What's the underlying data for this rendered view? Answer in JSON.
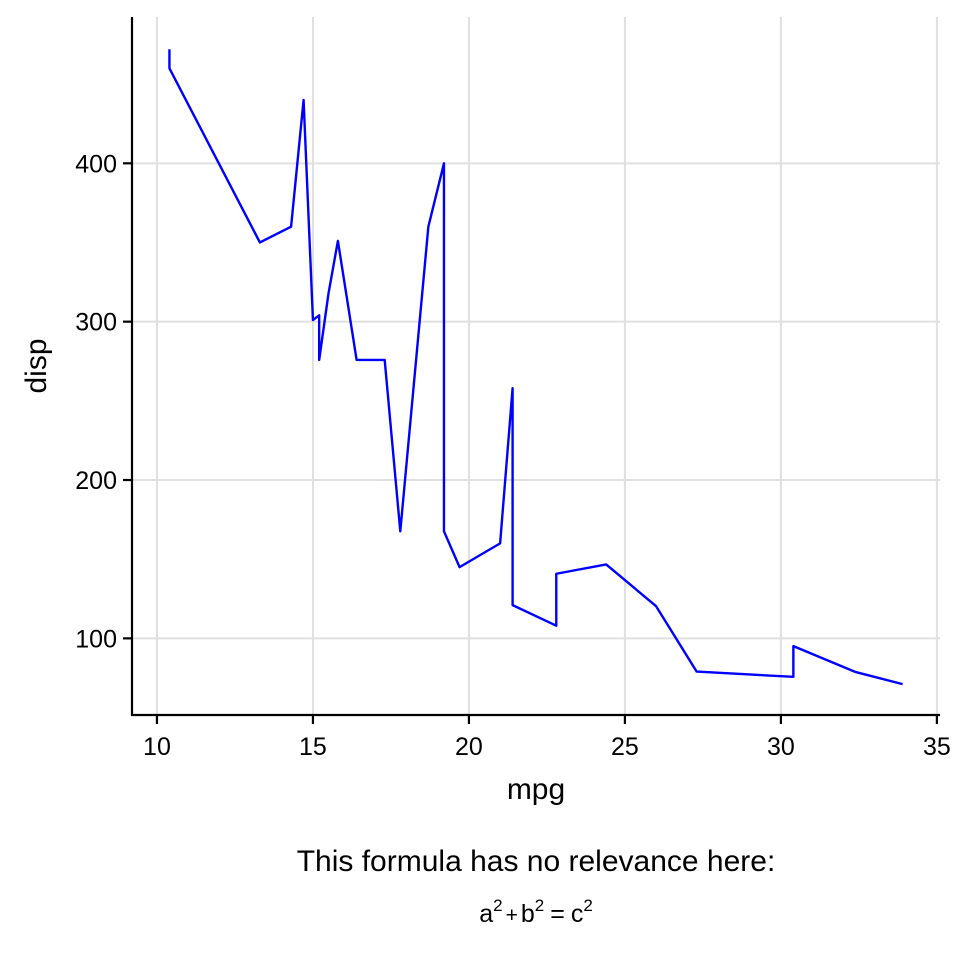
{
  "chart_data": {
    "type": "line",
    "xlabel": "mpg",
    "ylabel": "disp",
    "xlim": [
      9.2,
      35.1
    ],
    "ylim": [
      51.6,
      492.4
    ],
    "x_ticks": [
      10,
      15,
      20,
      25,
      30,
      35
    ],
    "y_ticks": [
      100,
      200,
      300,
      400
    ],
    "grid": true,
    "legend": "none",
    "line_color": "#0000FF",
    "caption": {
      "line1": "This formula has no relevance here:",
      "formula": {
        "a": "a",
        "a_exp": "2",
        "plus": "+",
        "b": "b",
        "b_exp": "2",
        "equals": "=",
        "c": "c",
        "c_exp": "2"
      }
    },
    "series": [
      {
        "x": [
          10.4,
          10.4,
          13.3,
          14.3,
          14.7,
          15.0,
          15.2,
          15.2,
          15.5,
          15.8,
          16.4,
          17.3,
          17.8,
          18.7,
          19.2,
          19.2,
          19.7,
          21.0,
          21.4,
          21.4,
          22.8,
          22.8,
          24.4,
          26.0,
          27.3,
          30.4,
          30.4,
          32.4,
          33.9
        ],
        "y": [
          472,
          460,
          350,
          360,
          440,
          301,
          304,
          275.8,
          318,
          351,
          275.8,
          275.8,
          167.6,
          360,
          400,
          167.6,
          145,
          160,
          258,
          121,
          108,
          140.8,
          146.7,
          120.3,
          79,
          75.7,
          95.1,
          78.7,
          71.1
        ]
      }
    ]
  }
}
